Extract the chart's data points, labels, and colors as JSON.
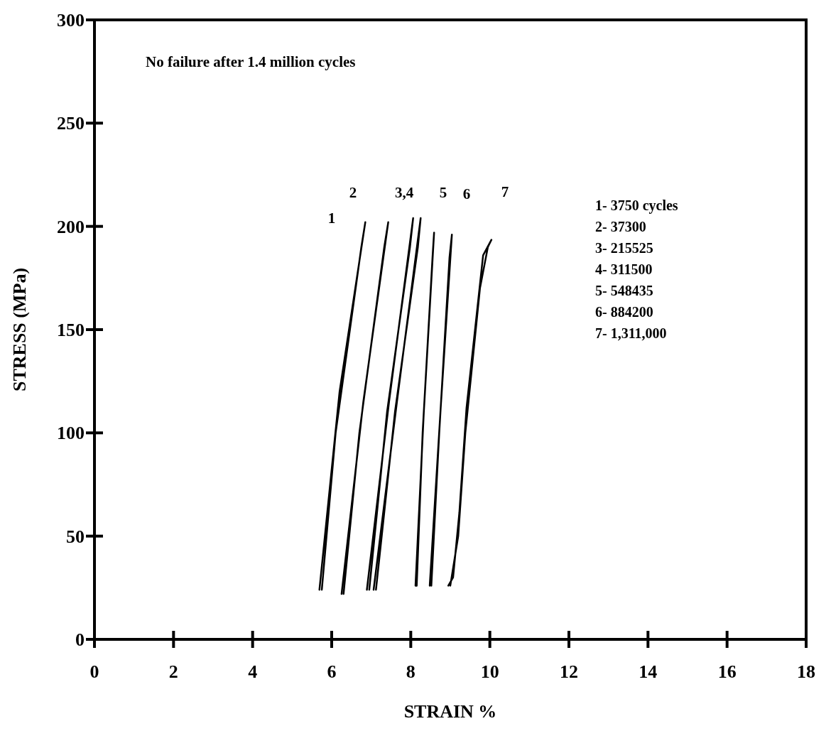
{
  "chart_data": {
    "type": "line",
    "xlabel": "STRAIN  %",
    "ylabel": "STRESS  (MPa)",
    "xlim": [
      0,
      18
    ],
    "ylim": [
      0,
      300
    ],
    "xticks": [
      0,
      2,
      4,
      6,
      8,
      10,
      12,
      14,
      16,
      18
    ],
    "yticks": [
      0,
      50,
      100,
      150,
      200,
      250,
      300
    ],
    "grid": false,
    "marker": "none",
    "line_style": "solid",
    "series": [
      {
        "color": "#000000",
        "x": [
          5.69,
          6.2,
          6.85,
          6.75,
          6.1,
          5.75
        ],
        "values": [
          24,
          120,
          202,
          190,
          100,
          24
        ]
      },
      {
        "color": "#000000",
        "x": [
          6.25,
          6.8,
          7.43,
          7.33,
          6.7,
          6.3
        ],
        "values": [
          22,
          115,
          202,
          190,
          100,
          22
        ]
      },
      {
        "color": "#000000",
        "x": [
          6.89,
          7.45,
          8.06,
          7.98,
          7.4,
          6.95
        ],
        "values": [
          24,
          115,
          204,
          190,
          110,
          24
        ]
      },
      {
        "color": "#000000",
        "x": [
          7.06,
          7.65,
          8.25,
          8.18,
          7.6,
          7.12
        ],
        "values": [
          24,
          115,
          204,
          190,
          110,
          24
        ]
      },
      {
        "color": "#000000",
        "x": [
          8.12,
          8.33,
          8.59,
          8.55,
          8.3,
          8.15
        ],
        "values": [
          26,
          110,
          197,
          185,
          100,
          26
        ]
      },
      {
        "color": "#000000",
        "x": [
          8.48,
          8.75,
          9.04,
          8.98,
          8.72,
          8.52
        ],
        "values": [
          26,
          110,
          196,
          185,
          100,
          26
        ]
      },
      {
        "color": "#000000",
        "x": [
          8.95,
          9.07,
          9.23,
          9.41,
          9.83,
          10.04,
          9.95,
          9.75,
          9.38,
          9.2,
          9.0
        ],
        "values": [
          26,
          30,
          61.5,
          112,
          186,
          193.5,
          190,
          170,
          100,
          50,
          26
        ]
      }
    ],
    "annotations": [
      "No failure after 1.4 million cycles",
      "1-  3750 cycles",
      "2-  37300",
      "3- 215525",
      "4- 311500",
      "5- 548435",
      "6- 884200",
      "7- 1,311,000",
      "1",
      "2",
      "3,4",
      "5",
      "6",
      "7"
    ]
  }
}
